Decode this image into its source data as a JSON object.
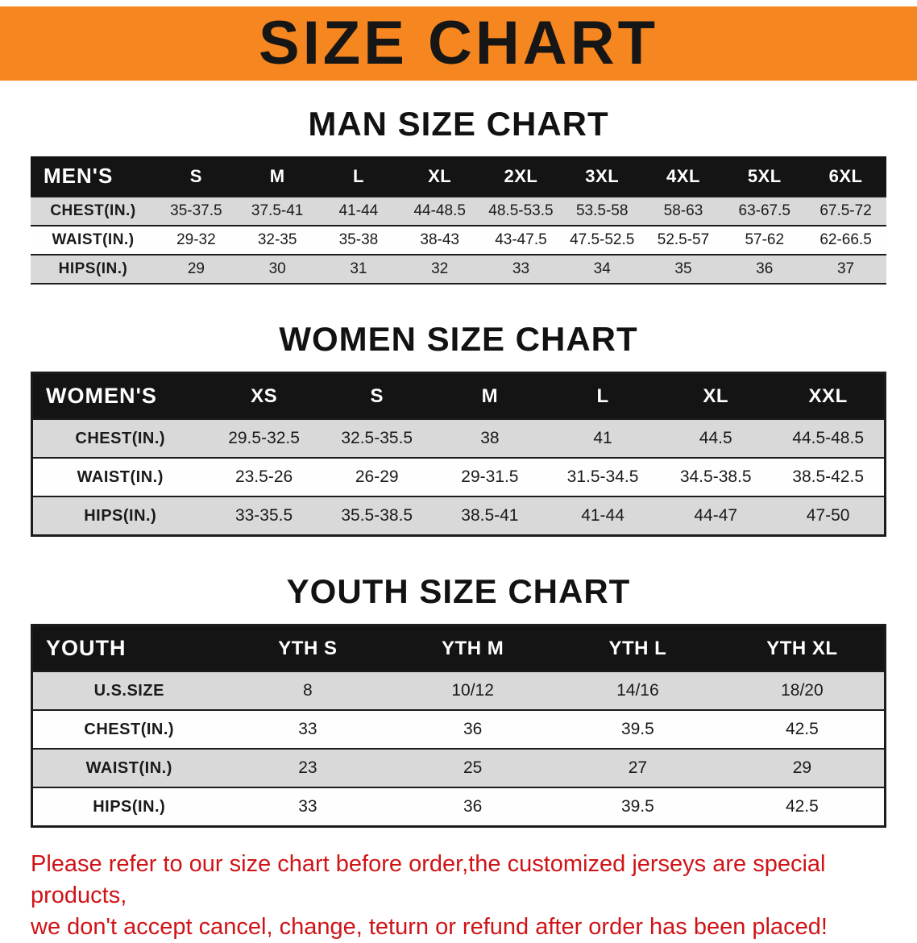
{
  "colors": {
    "banner_orange": "#F6861F",
    "header_black": "#141414",
    "row_gray": "#D9D9D9",
    "disclaimer_red": "#CF1418"
  },
  "banner": {
    "title": "SIZE CHART"
  },
  "men": {
    "heading": "MAN SIZE CHART",
    "table": {
      "header": [
        "MEN'S",
        "S",
        "M",
        "L",
        "XL",
        "2XL",
        "3XL",
        "4XL",
        "5XL",
        "6XL"
      ],
      "rows": [
        {
          "label": "CHEST(IN.)",
          "values": [
            "35-37.5",
            "37.5-41",
            "41-44",
            "44-48.5",
            "48.5-53.5",
            "53.5-58",
            "58-63",
            "63-67.5",
            "67.5-72"
          ]
        },
        {
          "label": "WAIST(IN.)",
          "values": [
            "29-32",
            "32-35",
            "35-38",
            "38-43",
            "43-47.5",
            "47.5-52.5",
            "52.5-57",
            "57-62",
            "62-66.5"
          ]
        },
        {
          "label": "HIPS(IN.)",
          "values": [
            "29",
            "30",
            "31",
            "32",
            "33",
            "34",
            "35",
            "36",
            "37"
          ]
        }
      ]
    }
  },
  "women": {
    "heading": "WOMEN SIZE CHART",
    "table": {
      "header": [
        "WOMEN'S",
        "XS",
        "S",
        "M",
        "L",
        "XL",
        "XXL"
      ],
      "rows": [
        {
          "label": "CHEST(IN.)",
          "values": [
            "29.5-32.5",
            "32.5-35.5",
            "38",
            "41",
            "44.5",
            "44.5-48.5"
          ]
        },
        {
          "label": "WAIST(IN.)",
          "values": [
            "23.5-26",
            "26-29",
            "29-31.5",
            "31.5-34.5",
            "34.5-38.5",
            "38.5-42.5"
          ]
        },
        {
          "label": "HIPS(IN.)",
          "values": [
            "33-35.5",
            "35.5-38.5",
            "38.5-41",
            "41-44",
            "44-47",
            "47-50"
          ]
        }
      ]
    }
  },
  "youth": {
    "heading": "YOUTH SIZE CHART",
    "table": {
      "header": [
        "YOUTH",
        "YTH S",
        "YTH M",
        "YTH L",
        "YTH XL"
      ],
      "rows": [
        {
          "label": "U.S.SIZE",
          "values": [
            "8",
            "10/12",
            "14/16",
            "18/20"
          ]
        },
        {
          "label": "CHEST(IN.)",
          "values": [
            "33",
            "36",
            "39.5",
            "42.5"
          ]
        },
        {
          "label": "WAIST(IN.)",
          "values": [
            "23",
            "25",
            "27",
            "29"
          ]
        },
        {
          "label": "HIPS(IN.)",
          "values": [
            "33",
            "36",
            "39.5",
            "42.5"
          ]
        }
      ]
    }
  },
  "disclaimer": {
    "line1": "Please refer to our size chart before order,the customized jerseys are special products,",
    "line2": "we don't accept cancel, change, teturn or refund after order has been placed!"
  }
}
